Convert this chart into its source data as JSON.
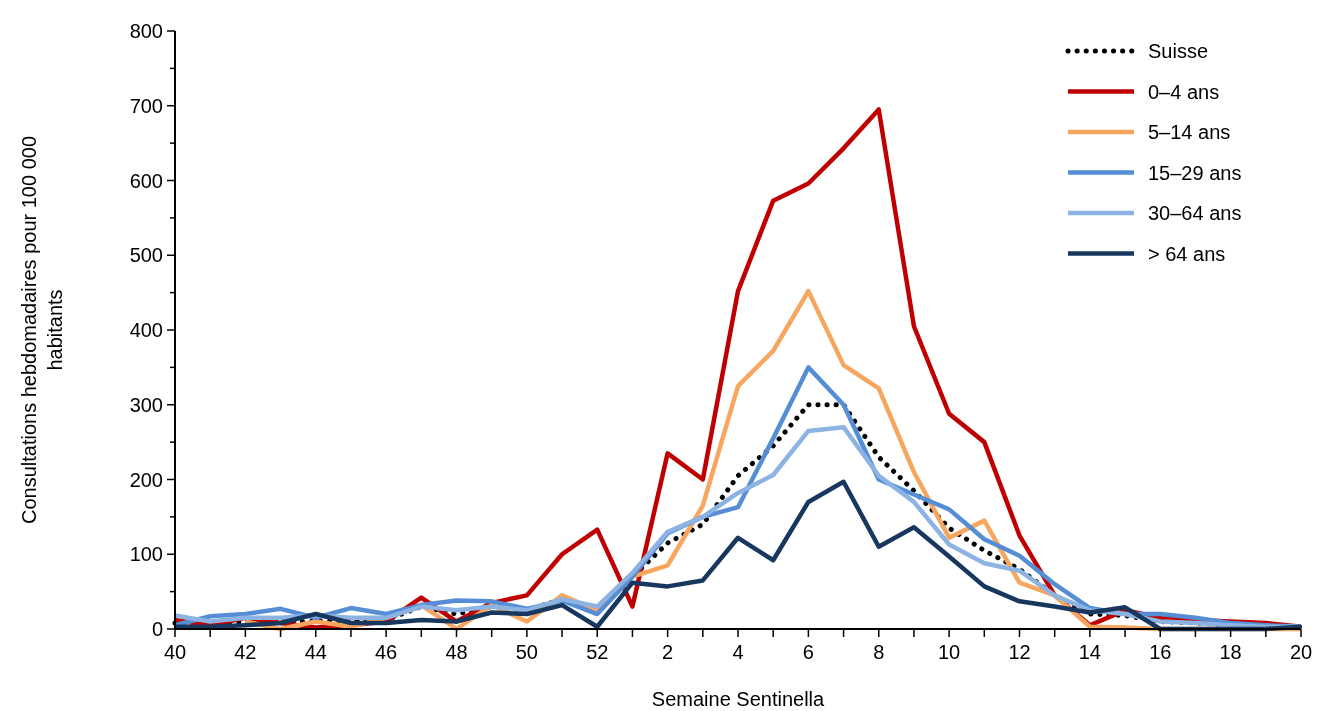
{
  "chart_data": {
    "type": "line",
    "xlabel": "Semaine Sentinella",
    "ylabel": "Consultations hebdomadaires pour 100 000 habitants",
    "categories": [
      "40",
      null,
      "42",
      null,
      "44",
      null,
      "46",
      null,
      "48",
      null,
      "50",
      null,
      "52",
      null,
      "2",
      null,
      "4",
      null,
      "6",
      null,
      "8",
      null,
      "10",
      null,
      "12",
      null,
      "14",
      null,
      "16",
      null,
      "18",
      null,
      "20"
    ],
    "ylim": [
      0,
      800
    ],
    "yticks": [
      0,
      {
        "value": 50,
        "label": null
      },
      100,
      {
        "value": 150,
        "label": null
      },
      200,
      {
        "value": 250,
        "label": null
      },
      300,
      {
        "value": 350,
        "label": null
      },
      400,
      {
        "value": 450,
        "label": null
      },
      500,
      {
        "value": 550,
        "label": null
      },
      600,
      {
        "value": 650,
        "label": null
      },
      700,
      {
        "value": 750,
        "label": null
      },
      800
    ],
    "grid": false,
    "legend": "top right",
    "marker": "none",
    "series": [
      {
        "name": "Suisse",
        "color": "#000000",
        "line_style": "dotted",
        "values": [
          8,
          8,
          10,
          10,
          10,
          12,
          12,
          30,
          20,
          30,
          25,
          40,
          25,
          70,
          115,
          140,
          205,
          245,
          300,
          300,
          230,
          185,
          135,
          105,
          80,
          45,
          20,
          18,
          10,
          8,
          5,
          4,
          3
        ]
      },
      {
        "name": "0–4 ans",
        "color": "#c00000",
        "line_style": "solid",
        "values": [
          12,
          5,
          15,
          8,
          2,
          5,
          10,
          42,
          10,
          35,
          45,
          100,
          133,
          30,
          235,
          200,
          452,
          573,
          596,
          643,
          695,
          405,
          288,
          250,
          125,
          45,
          5,
          25,
          15,
          12,
          10,
          8,
          3
        ]
      },
      {
        "name": "5–14 ans",
        "color": "#f7a65f",
        "line_style": "solid",
        "values": [
          null,
          null,
          10,
          0,
          10,
          3,
          15,
          32,
          0,
          32,
          10,
          45,
          25,
          70,
          85,
          165,
          325,
          372,
          452,
          353,
          322,
          210,
          122,
          145,
          62,
          45,
          3,
          2,
          0,
          0,
          0,
          0,
          0
        ]
      },
      {
        "name": "15–29 ans",
        "color": "#558ed5",
        "line_style": "solid",
        "values": [
          5,
          17,
          20,
          27,
          15,
          28,
          20,
          32,
          38,
          37,
          27,
          38,
          20,
          70,
          128,
          150,
          163,
          255,
          350,
          300,
          200,
          180,
          160,
          120,
          98,
          60,
          28,
          20,
          20,
          15,
          8,
          5,
          3
        ]
      },
      {
        "name": "30–64 ans",
        "color": "#8db3e2",
        "line_style": "solid",
        "values": [
          18,
          10,
          15,
          15,
          18,
          15,
          15,
          30,
          25,
          30,
          25,
          40,
          30,
          75,
          130,
          150,
          182,
          206,
          265,
          270,
          205,
          170,
          113,
          88,
          78,
          45,
          25,
          20,
          10,
          8,
          5,
          3,
          3
        ]
      },
      {
        "name": "> 64 ans",
        "color": "#17375e",
        "line_style": "solid",
        "values": [
          3,
          3,
          5,
          8,
          20,
          8,
          8,
          12,
          10,
          22,
          20,
          32,
          3,
          62,
          57,
          65,
          122,
          92,
          170,
          197,
          110,
          136,
          97,
          57,
          37,
          30,
          22,
          29,
          0,
          0,
          0,
          0,
          3
        ]
      }
    ]
  }
}
